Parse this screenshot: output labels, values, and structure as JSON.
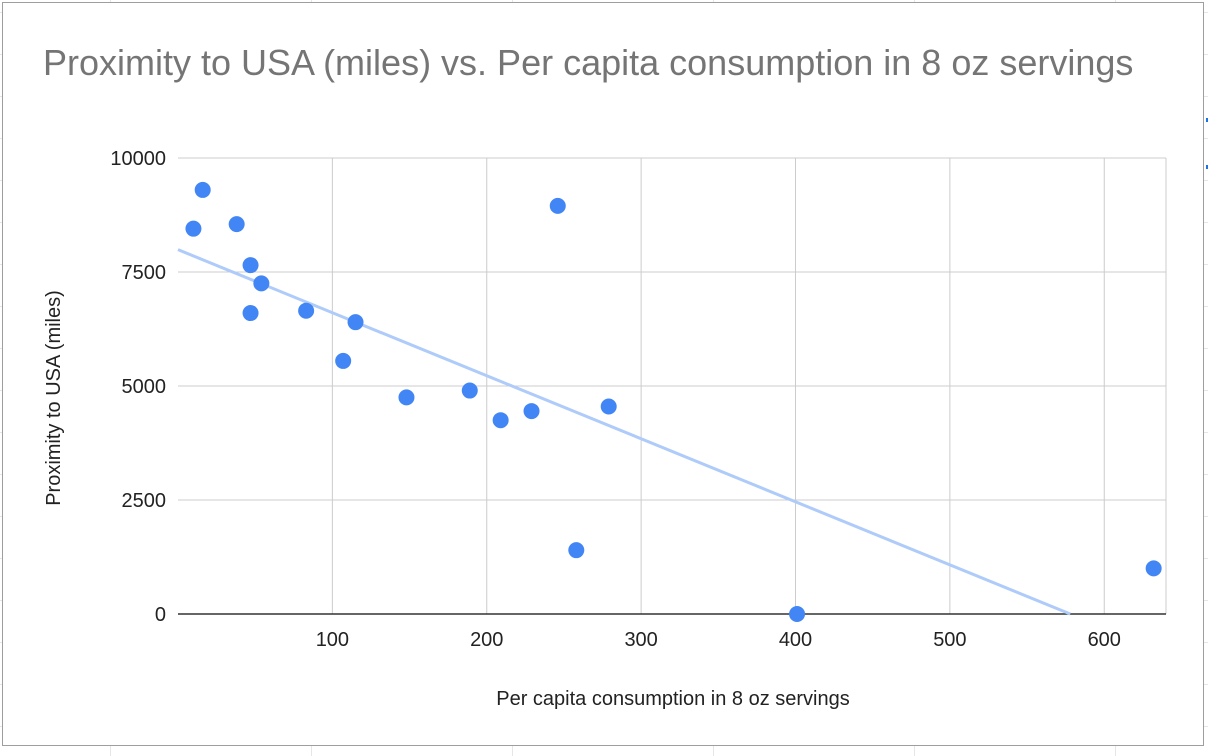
{
  "chart_data": {
    "type": "scatter",
    "title": "Proximity to USA (miles) vs. Per capita consumption in 8 oz servings",
    "xlabel": "Per capita consumption in 8 oz servings",
    "ylabel": "Proximity to USA (miles)",
    "xlim": [
      0,
      640
    ],
    "ylim": [
      0,
      10000
    ],
    "x_ticks": [
      100,
      200,
      300,
      400,
      500,
      600
    ],
    "y_ticks": [
      0,
      2500,
      5000,
      7500,
      10000
    ],
    "x_tick_labels": [
      "100",
      "200",
      "300",
      "400",
      "500",
      "600"
    ],
    "y_tick_labels": [
      "0",
      "2500",
      "5000",
      "7500",
      "10000"
    ],
    "grid": true,
    "legend": "none",
    "points": [
      {
        "x": 10,
        "y": 8450
      },
      {
        "x": 16,
        "y": 9300
      },
      {
        "x": 38,
        "y": 8550
      },
      {
        "x": 47,
        "y": 7650
      },
      {
        "x": 47,
        "y": 6600
      },
      {
        "x": 54,
        "y": 7250
      },
      {
        "x": 83,
        "y": 6650
      },
      {
        "x": 107,
        "y": 5550
      },
      {
        "x": 115,
        "y": 6400
      },
      {
        "x": 148,
        "y": 4750
      },
      {
        "x": 189,
        "y": 4900
      },
      {
        "x": 209,
        "y": 4250
      },
      {
        "x": 229,
        "y": 4450
      },
      {
        "x": 246,
        "y": 8950
      },
      {
        "x": 258,
        "y": 1400
      },
      {
        "x": 279,
        "y": 4550
      },
      {
        "x": 401,
        "y": 0
      },
      {
        "x": 632,
        "y": 1000
      }
    ],
    "trendline": {
      "type": "linear",
      "x_start": 0,
      "y_start": 7990,
      "x_end": 578,
      "y_end": 0
    },
    "colors": {
      "points": "#4285f4",
      "trendline": "#aecbfa",
      "grid": "#cccccc",
      "axis": "#333333"
    }
  }
}
